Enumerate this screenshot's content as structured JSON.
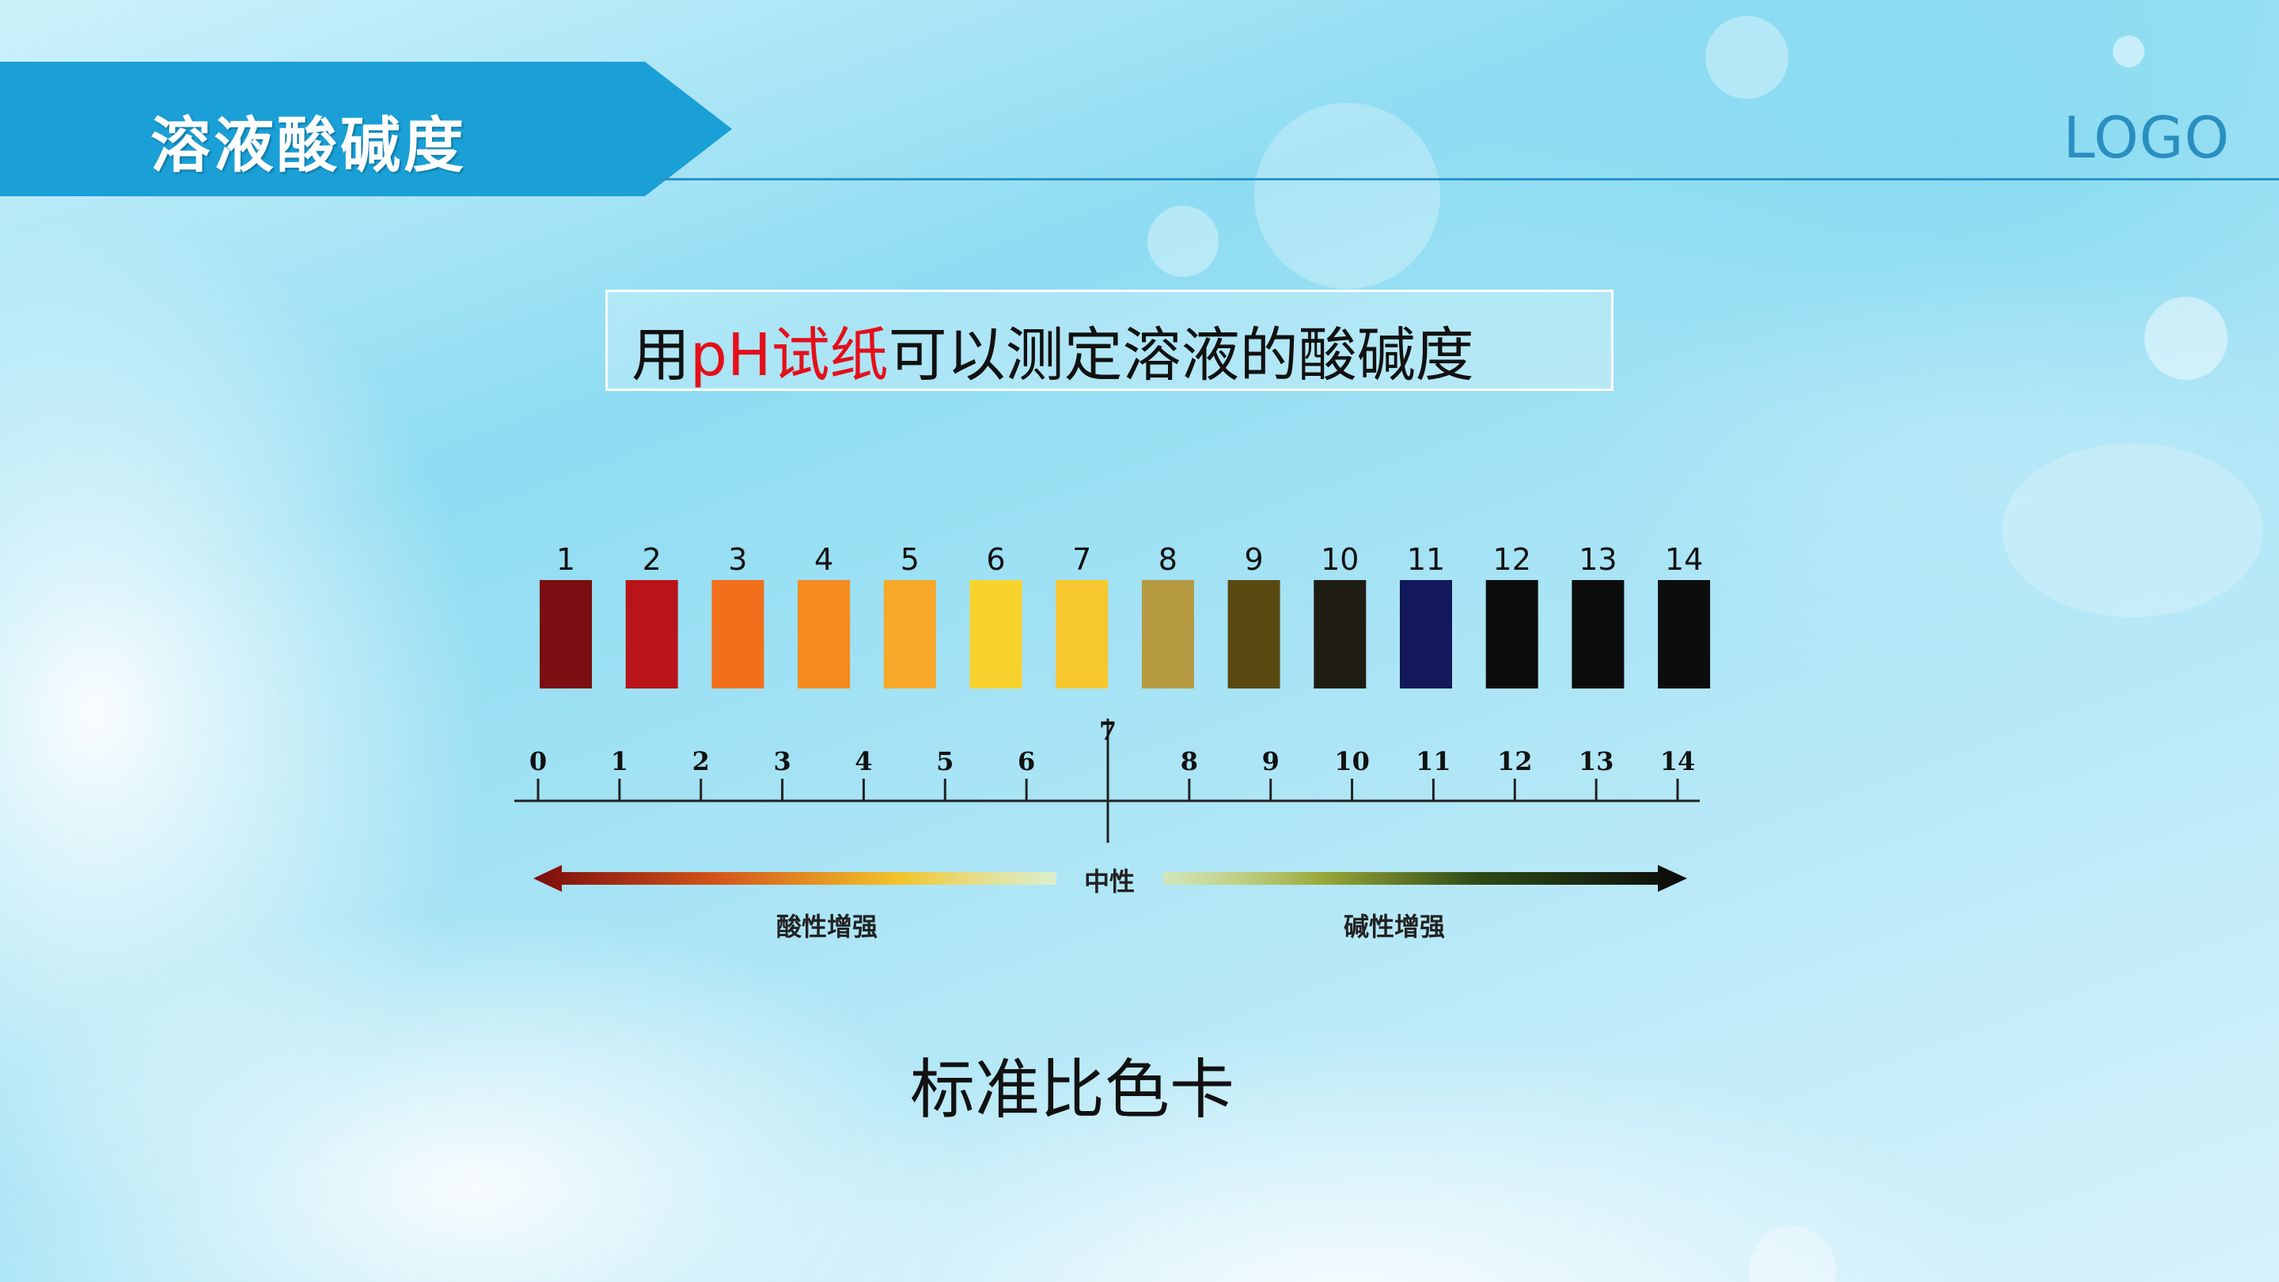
{
  "header": {
    "title": "溶液酸碱度",
    "logo": "LOGO"
  },
  "subtitle": {
    "prefix": "用",
    "highlight": "pH试纸",
    "suffix": "可以测定溶液的酸碱度"
  },
  "colors": {
    "banner": "#1aa0d6",
    "highlight": "#e3101a",
    "header_line": "#2a94c4"
  },
  "swatches": [
    {
      "label": "1",
      "color": "#7a0e12"
    },
    {
      "label": "2",
      "color": "#b8141a"
    },
    {
      "label": "3",
      "color": "#f2701c"
    },
    {
      "label": "4",
      "color": "#f58a1e"
    },
    {
      "label": "5",
      "color": "#f7a828"
    },
    {
      "label": "6",
      "color": "#f8d22c"
    },
    {
      "label": "7",
      "color": "#f6c72e"
    },
    {
      "label": "8",
      "color": "#b59a42"
    },
    {
      "label": "9",
      "color": "#5a4a12"
    },
    {
      "label": "10",
      "color": "#1f1c14"
    },
    {
      "label": "11",
      "color": "#13185a"
    },
    {
      "label": "12",
      "color": "#0d0d0d"
    },
    {
      "label": "13",
      "color": "#0d0d0d"
    },
    {
      "label": "14",
      "color": "#0d0d0d"
    }
  ],
  "scale": {
    "ticks": [
      "0",
      "1",
      "2",
      "3",
      "4",
      "5",
      "6",
      "7",
      "8",
      "9",
      "10",
      "11",
      "12",
      "13",
      "14"
    ],
    "neutral_value": "7",
    "neutral_label": "中性",
    "acid_label": "酸性增强",
    "base_label": "碱性增强"
  },
  "caption": "标准比色卡"
}
